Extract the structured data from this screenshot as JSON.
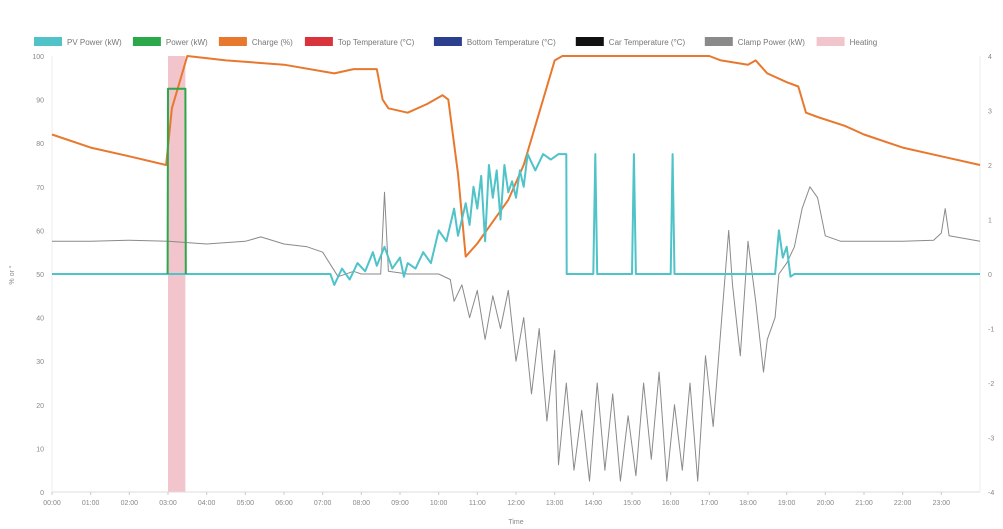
{
  "chart_data": {
    "type": "line",
    "xlabel": "Time",
    "ylabel": "% or °",
    "x_ticks": [
      "00:00",
      "01:00",
      "02:00",
      "03:00",
      "04:00",
      "05:00",
      "06:00",
      "07:00",
      "08:00",
      "09:00",
      "10:00",
      "11:00",
      "12:00",
      "13:00",
      "14:00",
      "15:00",
      "16:00",
      "17:00",
      "18:00",
      "19:00",
      "20:00",
      "21:00",
      "22:00",
      "23:00"
    ],
    "x_range": [
      0,
      24
    ],
    "y_left": {
      "range": [
        0,
        100
      ],
      "ticks": [
        "0",
        "10",
        "20",
        "30",
        "40",
        "50",
        "60",
        "70",
        "80",
        "90",
        "100"
      ]
    },
    "y_right": {
      "range": [
        -4,
        4
      ],
      "ticks": [
        "-4",
        "-3",
        "-2",
        "-1",
        "0",
        "1",
        "2",
        "3",
        "4"
      ]
    },
    "grid": false,
    "legend_position": "top",
    "legend": [
      {
        "label": "PV Power (kW)",
        "color": "#4fc3c8"
      },
      {
        "label": "Power (kW)",
        "color": "#2aa84a"
      },
      {
        "label": "Charge (%)",
        "color": "#e8782e"
      },
      {
        "label": "Top Temperature (°C)",
        "color": "#d9343c"
      },
      {
        "label": "Bottom Temperature (°C)",
        "color": "#2c3f8f"
      },
      {
        "label": "Car Temperature (°C)",
        "color": "#111111"
      },
      {
        "label": "Clamp Power (kW)",
        "color": "#8a8a8a"
      },
      {
        "label": "Heating",
        "color": "#f2c4cc"
      }
    ],
    "heating_bands": [
      [
        3.0,
        3.45
      ]
    ],
    "series": [
      {
        "name": "Charge (%)",
        "axis": "left",
        "color": "#e8782e",
        "points": [
          [
            0,
            82
          ],
          [
            1,
            79
          ],
          [
            2,
            77
          ],
          [
            2.95,
            75
          ],
          [
            3.1,
            88
          ],
          [
            3.5,
            100
          ],
          [
            4.5,
            99
          ],
          [
            6,
            98
          ],
          [
            7.3,
            96
          ],
          [
            7.8,
            97
          ],
          [
            8.4,
            97
          ],
          [
            8.55,
            90
          ],
          [
            8.7,
            88
          ],
          [
            9.2,
            87
          ],
          [
            9.7,
            89
          ],
          [
            10.1,
            91
          ],
          [
            10.25,
            90
          ],
          [
            10.5,
            73
          ],
          [
            10.7,
            54
          ],
          [
            11,
            57
          ],
          [
            11.4,
            62
          ],
          [
            11.8,
            67
          ],
          [
            12.2,
            75
          ],
          [
            12.6,
            87
          ],
          [
            13,
            99
          ],
          [
            13.2,
            100
          ],
          [
            14,
            100
          ],
          [
            15,
            100
          ],
          [
            16,
            100
          ],
          [
            17,
            100
          ],
          [
            17.3,
            99
          ],
          [
            18,
            98
          ],
          [
            18.2,
            99
          ],
          [
            18.5,
            96
          ],
          [
            19,
            94
          ],
          [
            19.3,
            93
          ],
          [
            19.5,
            87
          ],
          [
            19.8,
            86
          ],
          [
            20.5,
            84
          ],
          [
            21,
            82
          ],
          [
            22,
            79
          ],
          [
            23,
            77
          ],
          [
            24,
            75
          ]
        ]
      },
      {
        "name": "Power (kW)",
        "axis": "right",
        "color": "#2aa84a",
        "points": [
          [
            2.99,
            0
          ],
          [
            3.0,
            3.4
          ],
          [
            3.45,
            3.4
          ],
          [
            3.46,
            0
          ]
        ]
      },
      {
        "name": "PV Power (kW)",
        "axis": "right",
        "color": "#4fc3c8",
        "points": [
          [
            0,
            0
          ],
          [
            7.2,
            0
          ],
          [
            7.3,
            -0.2
          ],
          [
            7.5,
            0.1
          ],
          [
            7.7,
            -0.1
          ],
          [
            7.9,
            0.2
          ],
          [
            8.1,
            0.05
          ],
          [
            8.3,
            0.4
          ],
          [
            8.4,
            0.15
          ],
          [
            8.6,
            0.5
          ],
          [
            8.8,
            0.1
          ],
          [
            9,
            0.3
          ],
          [
            9.1,
            -0.05
          ],
          [
            9.2,
            0.2
          ],
          [
            9.4,
            0.1
          ],
          [
            9.6,
            0.4
          ],
          [
            9.8,
            0.2
          ],
          [
            10,
            0.8
          ],
          [
            10.2,
            0.6
          ],
          [
            10.4,
            1.2
          ],
          [
            10.5,
            0.7
          ],
          [
            10.6,
            1.0
          ],
          [
            10.7,
            1.3
          ],
          [
            10.8,
            0.9
          ],
          [
            10.9,
            1.6
          ],
          [
            11,
            1.2
          ],
          [
            11.1,
            1.8
          ],
          [
            11.2,
            0.6
          ],
          [
            11.3,
            2.0
          ],
          [
            11.4,
            1.4
          ],
          [
            11.5,
            1.9
          ],
          [
            11.6,
            1.0
          ],
          [
            11.7,
            2.0
          ],
          [
            11.8,
            1.5
          ],
          [
            11.9,
            1.7
          ],
          [
            12,
            1.4
          ],
          [
            12.1,
            1.9
          ],
          [
            12.2,
            1.6
          ],
          [
            12.3,
            2.2
          ],
          [
            12.5,
            1.9
          ],
          [
            12.7,
            2.2
          ],
          [
            12.9,
            2.1
          ],
          [
            13.1,
            2.2
          ],
          [
            13.3,
            2.2
          ],
          [
            13.31,
            0
          ],
          [
            14,
            0
          ],
          [
            14.05,
            2.2
          ],
          [
            14.1,
            0
          ],
          [
            15,
            0
          ],
          [
            15.05,
            2.2
          ],
          [
            15.1,
            0
          ],
          [
            16.0,
            0
          ],
          [
            16.05,
            2.2
          ],
          [
            16.1,
            0
          ],
          [
            18.7,
            0
          ],
          [
            18.8,
            0.8
          ],
          [
            18.9,
            0.3
          ],
          [
            19.0,
            0.5
          ],
          [
            19.1,
            -0.05
          ],
          [
            19.2,
            0
          ],
          [
            24,
            0
          ]
        ]
      },
      {
        "name": "Clamp Power (kW)",
        "axis": "right",
        "color": "#8a8a8a",
        "points": [
          [
            0,
            0.6
          ],
          [
            1,
            0.6
          ],
          [
            2,
            0.62
          ],
          [
            3,
            0.6
          ],
          [
            4,
            0.55
          ],
          [
            5,
            0.6
          ],
          [
            5.4,
            0.68
          ],
          [
            6,
            0.55
          ],
          [
            6.6,
            0.5
          ],
          [
            7,
            0.4
          ],
          [
            7.4,
            -0.05
          ],
          [
            7.8,
            0.05
          ],
          [
            8,
            0
          ],
          [
            8.5,
            0
          ],
          [
            8.6,
            1.5
          ],
          [
            8.7,
            0.05
          ],
          [
            9.2,
            0
          ],
          [
            9.5,
            0
          ],
          [
            10,
            0
          ],
          [
            10.3,
            -0.1
          ],
          [
            10.4,
            -0.5
          ],
          [
            10.6,
            -0.2
          ],
          [
            10.8,
            -0.8
          ],
          [
            11.0,
            -0.3
          ],
          [
            11.2,
            -1.2
          ],
          [
            11.4,
            -0.4
          ],
          [
            11.6,
            -1.0
          ],
          [
            11.8,
            -0.3
          ],
          [
            12,
            -1.6
          ],
          [
            12.2,
            -0.8
          ],
          [
            12.4,
            -2.2
          ],
          [
            12.6,
            -1.0
          ],
          [
            12.8,
            -2.7
          ],
          [
            13,
            -1.4
          ],
          [
            13.1,
            -3.5
          ],
          [
            13.3,
            -2.0
          ],
          [
            13.5,
            -3.6
          ],
          [
            13.7,
            -2.5
          ],
          [
            13.9,
            -3.8
          ],
          [
            14.1,
            -2.0
          ],
          [
            14.3,
            -3.6
          ],
          [
            14.5,
            -2.2
          ],
          [
            14.7,
            -3.8
          ],
          [
            14.9,
            -2.6
          ],
          [
            15.1,
            -3.7
          ],
          [
            15.3,
            -2.0
          ],
          [
            15.5,
            -3.4
          ],
          [
            15.7,
            -1.8
          ],
          [
            15.9,
            -3.8
          ],
          [
            16.1,
            -2.4
          ],
          [
            16.3,
            -3.6
          ],
          [
            16.5,
            -2.0
          ],
          [
            16.7,
            -3.8
          ],
          [
            16.9,
            -1.5
          ],
          [
            17.1,
            -2.8
          ],
          [
            17.3,
            -1.0
          ],
          [
            17.5,
            0.8
          ],
          [
            17.6,
            -0.2
          ],
          [
            17.8,
            -1.5
          ],
          [
            18,
            0.6
          ],
          [
            18.2,
            -0.5
          ],
          [
            18.4,
            -1.8
          ],
          [
            18.5,
            -1.2
          ],
          [
            18.7,
            -0.8
          ],
          [
            18.8,
            0
          ],
          [
            19,
            0.2
          ],
          [
            19.2,
            0.5
          ],
          [
            19.4,
            1.2
          ],
          [
            19.6,
            1.6
          ],
          [
            19.8,
            1.4
          ],
          [
            20,
            0.7
          ],
          [
            20.4,
            0.6
          ],
          [
            21,
            0.6
          ],
          [
            22,
            0.6
          ],
          [
            22.8,
            0.62
          ],
          [
            23,
            0.75
          ],
          [
            23.1,
            1.2
          ],
          [
            23.2,
            0.7
          ],
          [
            24,
            0.6
          ]
        ]
      }
    ]
  }
}
